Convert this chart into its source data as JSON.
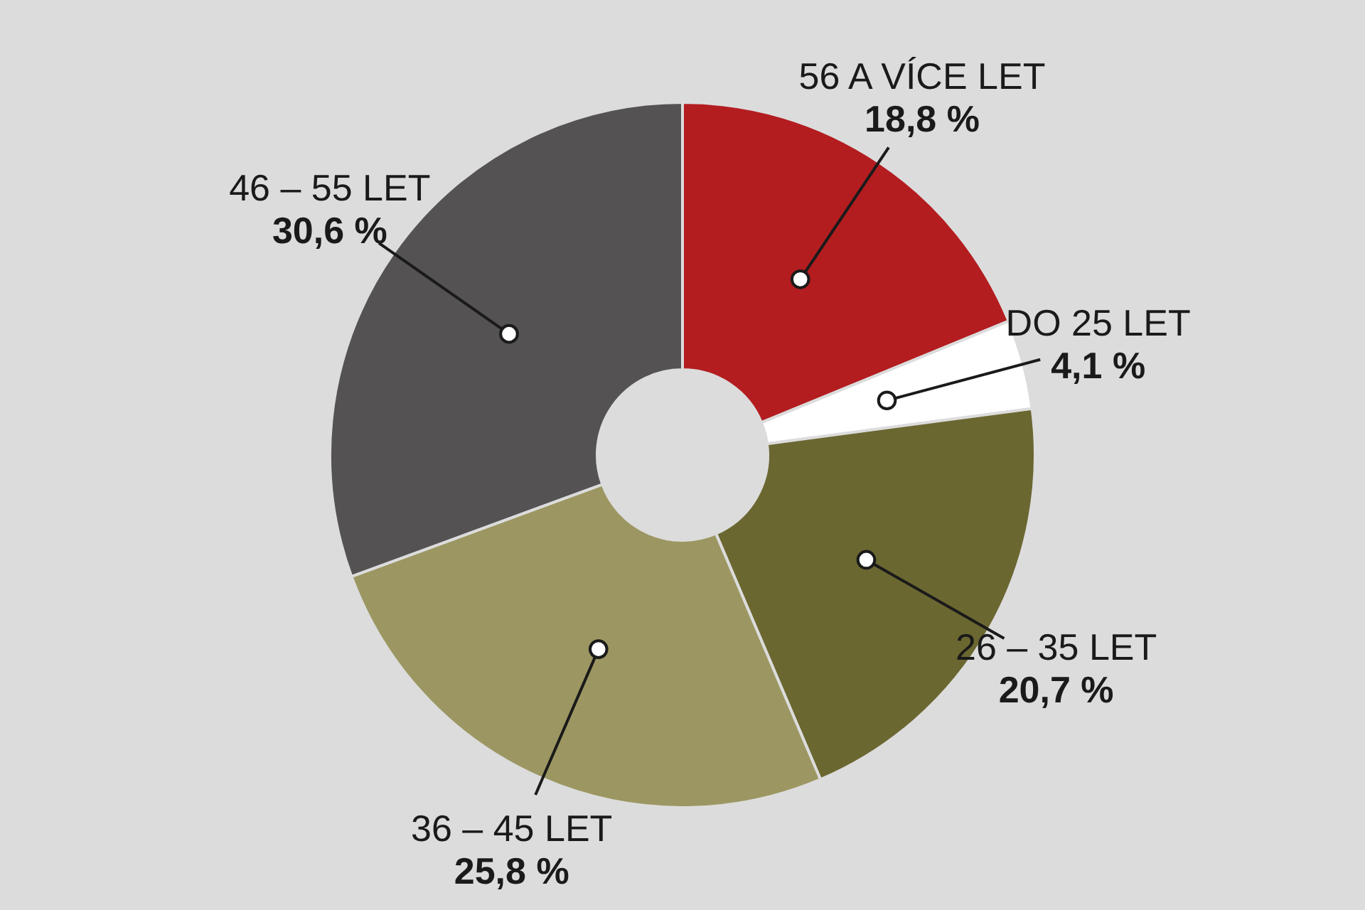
{
  "chart_data": {
    "type": "donut",
    "categories": [
      "56 A VÍCE LET",
      "DO 25 LET",
      "26 – 35 LET",
      "36 – 45 LET",
      "46 – 55 LET"
    ],
    "values": [
      18.8,
      4.1,
      20.7,
      25.8,
      30.6
    ],
    "colors": [
      "#b31d20",
      "#ffffff",
      "#6b6731",
      "#9c9762",
      "#545253"
    ],
    "value_labels": [
      "18,8 %",
      "4,1 %",
      "20,7 %",
      "25,8 %",
      "30,6 %"
    ]
  }
}
